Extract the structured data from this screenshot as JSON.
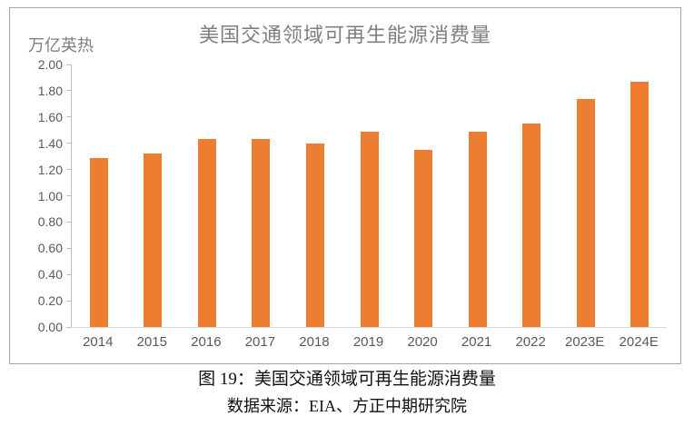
{
  "chart": {
    "title": "美国交通领域可再生能源消费量",
    "unit_label": "万亿英热",
    "bar_color": "#ed7d31",
    "title_color": "#7f7f7f",
    "axis_label_color": "#595959",
    "frame_border_color": "#a6a6a6"
  },
  "caption": {
    "figure_label": "图 19：美国交通领域可再生能源消费量",
    "source": "数据来源：EIA、方正中期研究院"
  },
  "chart_data": {
    "type": "bar",
    "title": "美国交通领域可再生能源消费量",
    "xlabel": "",
    "ylabel": "万亿英热",
    "categories": [
      "2014",
      "2015",
      "2016",
      "2017",
      "2018",
      "2019",
      "2020",
      "2021",
      "2022",
      "2023E",
      "2024E"
    ],
    "values": [
      1.29,
      1.32,
      1.43,
      1.43,
      1.4,
      1.49,
      1.35,
      1.49,
      1.55,
      1.74,
      1.87
    ],
    "ylim": [
      0,
      2.0
    ],
    "ytick_step": 0.2,
    "ytick_labels": [
      "2.00",
      "1.80",
      "1.60",
      "1.40",
      "1.20",
      "1.00",
      "0.80",
      "0.60",
      "0.40",
      "0.20",
      "0.00"
    ],
    "grid": false,
    "legend_position": "none",
    "bar_color": "#ed7d31"
  }
}
